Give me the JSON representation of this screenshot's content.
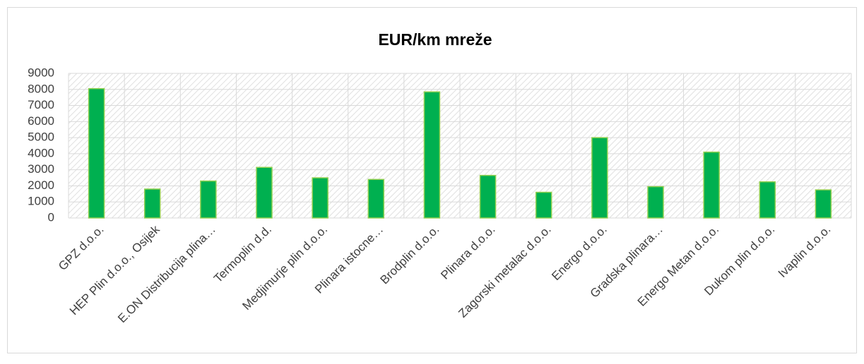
{
  "chart_data": {
    "type": "bar",
    "title": "EUR/km mreže",
    "categories": [
      "GPZ  d.o.o.",
      "HEP Plin d.o.o., Osijek",
      "E.ON Distribucija plina…",
      "Termoplin d.d.",
      "Medjimurje plin d.o.o.",
      "Plinara istocne…",
      "Brodplin d.o.o.",
      "Plinara d.o.o.",
      "Zagorski metalac d.o.o.",
      "Energo d.o.o.",
      "Gradska plinara…",
      "Energo Metan d.o.o.",
      "Dukom plin d.o.o.",
      "Ivaplin d.o.o."
    ],
    "values": [
      8050,
      1800,
      2300,
      3150,
      2500,
      2400,
      7850,
      2650,
      1600,
      5000,
      1950,
      4100,
      2250,
      1750
    ],
    "color": "#00b050",
    "ylim": [
      0,
      9000
    ],
    "yticks": [
      0,
      1000,
      2000,
      3000,
      4000,
      5000,
      6000,
      7000,
      8000,
      9000
    ],
    "grid": true
  }
}
